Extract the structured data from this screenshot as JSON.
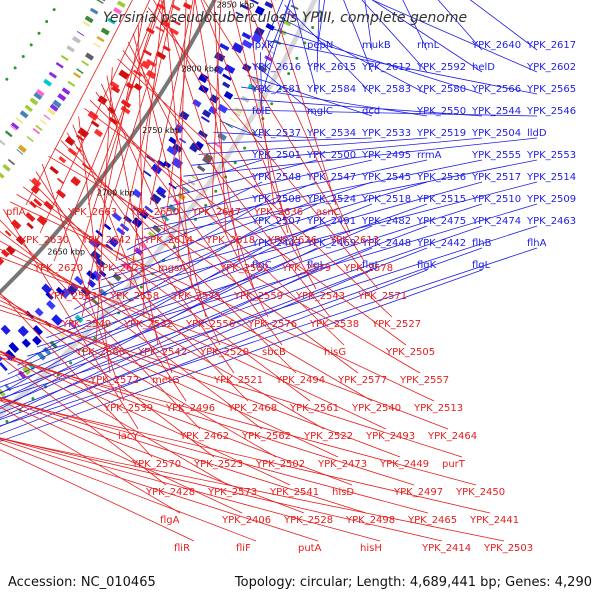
{
  "title": "Yersinia pseudotuberculosis YPIII, complete genome",
  "footer": {
    "accession": "Accession: NC_010465",
    "summary": "Topology: circular; Length: 4,689,441 bp; Genes: 4,290"
  },
  "colors": {
    "forward": "#1d1de6",
    "reverse": "#e61d1d",
    "backbone": "#777777",
    "tick_dot": "#2a9a2a"
  },
  "ticks": [
    "3000 kbp",
    "2950 kbp",
    "2900 kbp",
    "2850 kbp",
    "2800 kbp",
    "2750 kbp",
    "2700 kbp",
    "2650 kbp"
  ],
  "forward_labels": [
    "lpxK",
    "pepN",
    "mukB",
    "rlmL",
    "YPK_2640",
    "YPK_2617",
    "YPK_2616",
    "YPK_2615",
    "YPK_2612",
    "YPK_2592",
    "helD",
    "YPK_2602",
    "YPK_2581",
    "YPK_2584",
    "YPK_2583",
    "YPK_2580",
    "YPK_2566",
    "YPK_2565",
    "folE",
    "mglC",
    "dcd",
    "YPK_2550",
    "YPK_2544",
    "YPK_2546",
    "YPK_2537",
    "YPK_2534",
    "YPK_2533",
    "YPK_2519",
    "YPK_2504",
    "lldD",
    "YPK_2501",
    "YPK_2500",
    "YPK_2495",
    "rrmA",
    "YPK_2555",
    "YPK_2553",
    "YPK_2548",
    "YPK_2547",
    "YPK_2545",
    "YPK_2536",
    "YPK_2517",
    "YPK_2514",
    "YPK_2508",
    "YPK_2524",
    "YPK_2518",
    "YPK_2515",
    "YPK_2510",
    "YPK_2509",
    "YPK_2507",
    "YPK_2491",
    "YPK_2482",
    "YPK_2475",
    "YPK_2474",
    "YPK_2463",
    "YPK_2443",
    "YPK_2469",
    "YPK_2448",
    "YPK_2442",
    "flhB",
    "flhA",
    "flgC",
    "flgI",
    "flgJ",
    "flgK",
    "flgL"
  ],
  "reverse_labels": [
    "pflA",
    "YPK_2663",
    "YPK_2650",
    "YPK_2647",
    "YPK_2636",
    "asnC",
    "YPK_2630",
    "YPK_2642",
    "YPK_2614",
    "YPK_2618",
    "YPK_2626",
    "YPK_2613",
    "YPK_2620",
    "YPK_2621",
    "mgsA",
    "YPK_2582",
    "YPK_2579",
    "YPK_2578",
    "YPK_2563",
    "YPK_2558",
    "YPK_2575",
    "YPK_2559",
    "YPK_2543",
    "YPK_2571",
    "YPK_2549",
    "YPK_2532",
    "YPK_2556",
    "YPK_2576",
    "YPK_2538",
    "YPK_2527",
    "YPK_2560",
    "YPK_2542",
    "YPK_2520",
    "sbcB",
    "hisG",
    "YPK_2505",
    "YPK_2572",
    "metG",
    "YPK_2521",
    "YPK_2494",
    "YPK_2577",
    "YPK_2557",
    "YPK_2539",
    "YPK_2496",
    "YPK_2468",
    "YPK_2561",
    "YPK_2540",
    "YPK_2513",
    "lacY",
    "YPK_2462",
    "YPK_2562",
    "YPK_2522",
    "YPK_2493",
    "YPK_2464",
    "YPK_2570",
    "YPK_2523",
    "YPK_2502",
    "YPK_2473",
    "YPK_2449",
    "purT",
    "YPK_2428",
    "YPK_2573",
    "YPK_2541",
    "hisD",
    "YPK_2497",
    "YPK_2450",
    "flgA",
    "YPK_2406",
    "YPK_2528",
    "YPK_2498",
    "YPK_2465",
    "YPK_2441",
    "fliR",
    "fliF",
    "putA",
    "hisH",
    "YPK_2414",
    "YPK_2503"
  ]
}
